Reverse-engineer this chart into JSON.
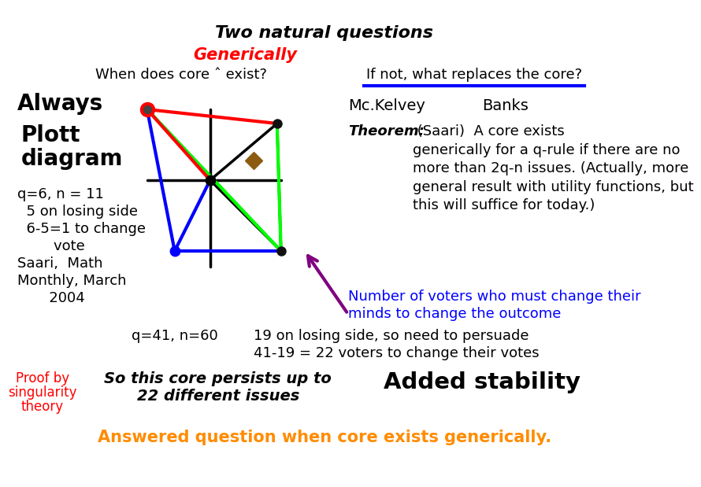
{
  "title": "Two natural questions",
  "generically_text": "Generically",
  "q1_header": "When does core ˆ exist?",
  "q2_header": "If not, what replaces the core?",
  "always_text": "Always",
  "plott_line1": "Plott",
  "plott_line2": "diagram",
  "mckelvey_text": "Mc.Kelvey",
  "banks_text": "Banks",
  "q1_line1": "q=6, n = 11",
  "q1_line2": "  5 on losing side",
  "q1_line3": "  6-5=1 to change",
  "q1_line4": "        vote",
  "q1_line5": "Saari,  Math",
  "q1_line6": "Monthly, March",
  "q1_line7": "       2004",
  "theorem_bold": "Theorem:",
  "theorem_rest": " (Saari)  A core exists\ngenerically for a q-rule if there are no\nmore than 2q-n issues. (Actually, more\ngeneral result with utility functions, but\nthis will suffice for today.)",
  "number_line1": "Number of voters who must change their",
  "number_line2": "minds to change the outcome",
  "q41_text": "q=41, n=60",
  "q41_line1": "19 on losing side, so need to persuade",
  "q41_line2": "41-19 = 22 voters to change their votes",
  "so_line1": "So this core persists up to",
  "so_line2": "22 different issues",
  "added_text": "Added stability",
  "proof_line1": "Proof by",
  "proof_line2": "singularity",
  "proof_line3": "theory",
  "answered_text": "Answered question when core exists generically.",
  "bg_color": "#ffffff"
}
